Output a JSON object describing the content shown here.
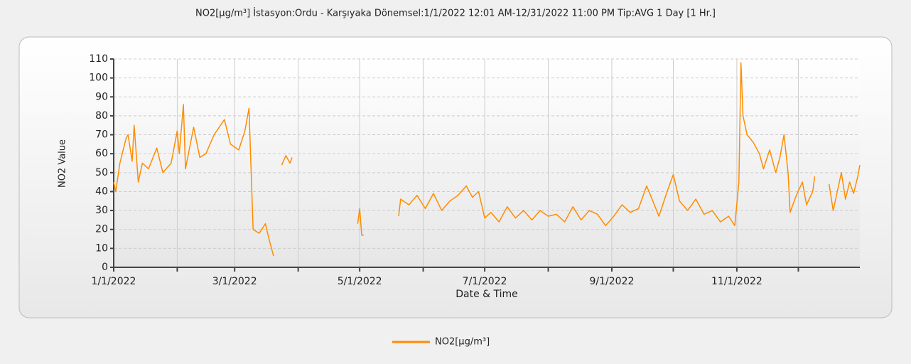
{
  "chart_data": {
    "type": "line",
    "title": "NO2[µg/m³] İstasyon:Ordu - Karşıyaka  Dönemsel:1/1/2022 12:01 AM-12/31/2022 11:00 PM  Tip:AVG 1 Day [1 Hr.]",
    "xlabel": "Date & Time",
    "ylabel": "NO2 Value",
    "x": [
      "2022-01-01",
      "2022-01-02",
      "2022-01-04",
      "2022-01-07",
      "2022-01-08",
      "2022-01-10",
      "2022-01-11",
      "2022-01-13",
      "2022-01-15",
      "2022-01-18",
      "2022-01-22",
      "2022-01-25",
      "2022-01-29",
      "2022-02-01",
      "2022-02-02",
      "2022-02-04",
      "2022-02-05",
      "2022-02-09",
      "2022-02-12",
      "2022-02-15",
      "2022-02-19",
      "2022-02-24",
      "2022-02-27",
      "2022-03-03",
      "2022-03-06",
      "2022-03-08",
      "2022-03-09",
      "2022-03-10",
      "2022-03-13",
      "2022-03-16",
      "2022-03-18",
      "2022-03-20",
      "2022-03-21",
      "2022-03-24",
      "2022-03-26",
      "2022-03-28",
      "2022-03-29",
      "2022-03-30",
      "2022-04-30",
      "2022-05-01",
      "2022-05-02",
      "2022-05-03",
      "2022-05-04",
      "2022-05-20",
      "2022-05-21",
      "2022-05-25",
      "2022-05-29",
      "2022-06-02",
      "2022-06-06",
      "2022-06-10",
      "2022-06-14",
      "2022-06-18",
      "2022-06-22",
      "2022-06-25",
      "2022-06-28",
      "2022-07-01",
      "2022-07-04",
      "2022-07-08",
      "2022-07-12",
      "2022-07-16",
      "2022-07-20",
      "2022-07-24",
      "2022-07-28",
      "2022-08-01",
      "2022-08-05",
      "2022-08-09",
      "2022-08-13",
      "2022-08-17",
      "2022-08-21",
      "2022-08-25",
      "2022-08-29",
      "2022-09-02",
      "2022-09-06",
      "2022-09-10",
      "2022-09-14",
      "2022-09-18",
      "2022-09-21",
      "2022-09-24",
      "2022-09-28",
      "2022-10-01",
      "2022-10-04",
      "2022-10-08",
      "2022-10-12",
      "2022-10-16",
      "2022-10-20",
      "2022-10-24",
      "2022-10-28",
      "2022-10-31",
      "2022-11-02",
      "2022-11-03",
      "2022-11-04",
      "2022-11-06",
      "2022-11-09",
      "2022-11-12",
      "2022-11-14",
      "2022-11-17",
      "2022-11-20",
      "2022-11-22",
      "2022-11-24",
      "2022-11-26",
      "2022-11-27",
      "2022-11-30",
      "2022-12-03",
      "2022-12-05",
      "2022-12-08",
      "2022-12-09",
      "2022-12-10",
      "2022-12-16",
      "2022-12-18",
      "2022-12-20",
      "2022-12-22",
      "2022-12-24",
      "2022-12-26",
      "2022-12-28",
      "2022-12-30",
      "2022-12-31"
    ],
    "series": [
      {
        "name": "NO2[µg/m³]",
        "color": "#ff8c00",
        "values": [
          45,
          40,
          55,
          68,
          70,
          56,
          75,
          45,
          55,
          52,
          63,
          50,
          55,
          72,
          60,
          86,
          52,
          74,
          58,
          60,
          70,
          78,
          65,
          62,
          72,
          84,
          52,
          20,
          18,
          23,
          14,
          6,
          null,
          54,
          59,
          55,
          58,
          null,
          23,
          31,
          17,
          17,
          null,
          27,
          36,
          33,
          38,
          31,
          39,
          30,
          35,
          38,
          43,
          37,
          40,
          26,
          29,
          24,
          32,
          26,
          30,
          25,
          30,
          27,
          28,
          24,
          32,
          25,
          30,
          28,
          22,
          27,
          33,
          29,
          31,
          43,
          35,
          27,
          40,
          49,
          35,
          30,
          36,
          28,
          30,
          24,
          27,
          22,
          45,
          108,
          80,
          70,
          66,
          60,
          52,
          62,
          50,
          58,
          70,
          50,
          29,
          38,
          45,
          33,
          40,
          48,
          null,
          44,
          30,
          40,
          50,
          36,
          45,
          39,
          48,
          54
        ]
      }
    ],
    "xlim": [
      "2022-01-01",
      "2022-12-31"
    ],
    "xticks": [
      {
        "value": "2022-01-01",
        "label": "1/1/2022"
      },
      {
        "value": "2022-03-01",
        "label": "3/1/2022"
      },
      {
        "value": "2022-05-01",
        "label": "5/1/2022"
      },
      {
        "value": "2022-07-01",
        "label": "7/1/2022"
      },
      {
        "value": "2022-09-01",
        "label": "9/1/2022"
      },
      {
        "value": "2022-11-01",
        "label": "11/1/2022"
      }
    ],
    "xminorticks": [
      "2022-02-01",
      "2022-04-01",
      "2022-06-01",
      "2022-08-01",
      "2022-10-01",
      "2022-12-01"
    ],
    "ylim": [
      0,
      110
    ],
    "yticks": [
      0,
      10,
      20,
      30,
      40,
      50,
      60,
      70,
      80,
      90,
      100,
      110
    ],
    "grid": true
  }
}
